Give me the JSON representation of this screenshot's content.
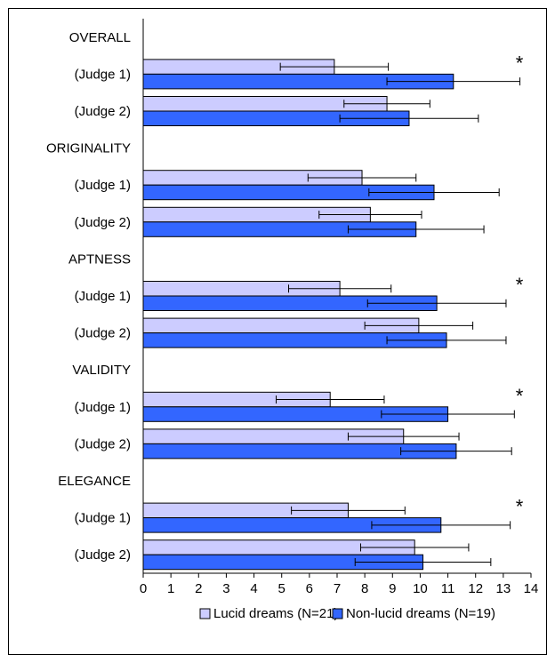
{
  "chart_data": {
    "type": "bar",
    "orientation": "horizontal",
    "xlim": [
      0,
      14
    ],
    "x_ticks": [
      "0",
      "1",
      "2",
      "3",
      "4",
      "5",
      "6",
      "7",
      "8",
      "9",
      "10",
      "11",
      "12",
      "13",
      "14"
    ],
    "series": [
      {
        "name": "Lucid dreams (N=21)",
        "color": "#ccccff"
      },
      {
        "name": "Non-lucid dreams (N=19)",
        "color": "#3366ff"
      }
    ],
    "groups": [
      {
        "label": "OVERALL",
        "rows": [
          {
            "label": "(Judge 1)",
            "values": [
              6.9,
              11.2
            ],
            "errors": [
              1.95,
              2.4
            ],
            "significant": true
          },
          {
            "label": "(Judge 2)",
            "values": [
              8.8,
              9.6
            ],
            "errors": [
              1.55,
              2.5
            ],
            "significant": false
          }
        ]
      },
      {
        "label": "ORIGINALITY",
        "rows": [
          {
            "label": "(Judge 1)",
            "values": [
              7.9,
              10.5
            ],
            "errors": [
              1.95,
              2.35
            ],
            "significant": false
          },
          {
            "label": "(Judge 2)",
            "values": [
              8.2,
              9.85
            ],
            "errors": [
              1.85,
              2.45
            ],
            "significant": false
          }
        ]
      },
      {
        "label": "APTNESS",
        "rows": [
          {
            "label": "(Judge 1)",
            "values": [
              7.1,
              10.6
            ],
            "errors": [
              1.85,
              2.5
            ],
            "significant": true
          },
          {
            "label": "(Judge 2)",
            "values": [
              9.95,
              10.95
            ],
            "errors": [
              1.95,
              2.15
            ],
            "significant": false
          }
        ]
      },
      {
        "label": "VALIDITY",
        "rows": [
          {
            "label": "(Judge 1)",
            "values": [
              6.75,
              11.0
            ],
            "errors": [
              1.95,
              2.4
            ],
            "significant": true
          },
          {
            "label": "(Judge 2)",
            "values": [
              9.4,
              11.3
            ],
            "errors": [
              2.0,
              2.0
            ],
            "significant": false
          }
        ]
      },
      {
        "label": "ELEGANCE",
        "rows": [
          {
            "label": "(Judge 1)",
            "values": [
              7.4,
              10.75
            ],
            "errors": [
              2.05,
              2.5
            ],
            "significant": true
          },
          {
            "label": "(Judge 2)",
            "values": [
              9.8,
              10.1
            ],
            "errors": [
              1.95,
              2.45
            ],
            "significant": false
          }
        ]
      }
    ],
    "significance_marker": "*",
    "legend_position": "bottom"
  }
}
